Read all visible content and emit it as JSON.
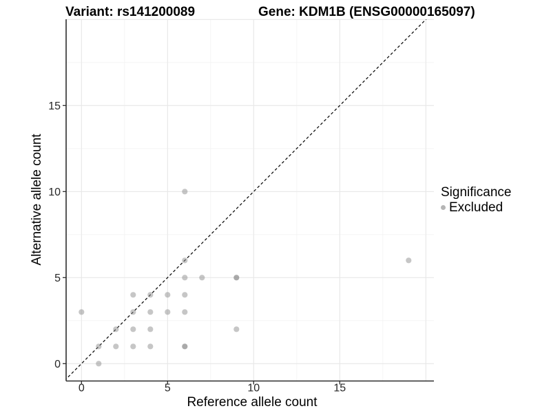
{
  "chart_data": {
    "type": "scatter",
    "title_left": "Variant: rs141200089",
    "title_right": "Gene: KDM1B (ENSG00000165097)",
    "xlabel": "Reference allele count",
    "ylabel": "Alternative allele count",
    "x_ticks": [
      0,
      5,
      10,
      15
    ],
    "y_ticks": [
      0,
      5,
      10,
      15
    ],
    "xlim": [
      -0.9,
      20.5
    ],
    "ylim": [
      -1,
      20
    ],
    "x_grid_major": [
      0,
      5,
      10,
      15,
      20
    ],
    "x_grid_minor": [
      2.5,
      7.5,
      12.5,
      17.5
    ],
    "y_grid_major": [
      0,
      5,
      10,
      15,
      20
    ],
    "y_grid_minor": [
      2.5,
      7.5,
      12.5,
      17.5
    ],
    "grid": true,
    "identity_line": {
      "style": "dashed",
      "slope": 1,
      "intercept": 0
    },
    "legend": {
      "position": "right",
      "title": "Significance",
      "items": [
        {
          "label": "Excluded",
          "color": "#b5b5b5"
        }
      ]
    },
    "series": [
      {
        "name": "Excluded",
        "color": "#8e8e8e",
        "points": [
          {
            "x": 0,
            "y": 3
          },
          {
            "x": 1,
            "y": 0
          },
          {
            "x": 1,
            "y": 1
          },
          {
            "x": 2,
            "y": 1
          },
          {
            "x": 2,
            "y": 2
          },
          {
            "x": 3,
            "y": 1
          },
          {
            "x": 3,
            "y": 2
          },
          {
            "x": 3,
            "y": 3
          },
          {
            "x": 3,
            "y": 4
          },
          {
            "x": 4,
            "y": 1
          },
          {
            "x": 4,
            "y": 2
          },
          {
            "x": 4,
            "y": 3
          },
          {
            "x": 4,
            "y": 4
          },
          {
            "x": 5,
            "y": 3
          },
          {
            "x": 5,
            "y": 4
          },
          {
            "x": 6,
            "y": 1,
            "alpha": 0.75
          },
          {
            "x": 6,
            "y": 3
          },
          {
            "x": 6,
            "y": 4
          },
          {
            "x": 6,
            "y": 5
          },
          {
            "x": 6,
            "y": 6
          },
          {
            "x": 6,
            "y": 10
          },
          {
            "x": 7,
            "y": 5
          },
          {
            "x": 9,
            "y": 2
          },
          {
            "x": 9,
            "y": 5,
            "alpha": 0.75
          },
          {
            "x": 19,
            "y": 6
          }
        ]
      }
    ]
  },
  "colors": {
    "background": "#ffffff",
    "grid_major": "#e7e7e7",
    "grid_minor": "#f3f3f3",
    "axis_line": "#2b2b2b",
    "identity_line": "#111111",
    "point": "#8e8e8e",
    "legend_dot": "#b5b5b5"
  }
}
